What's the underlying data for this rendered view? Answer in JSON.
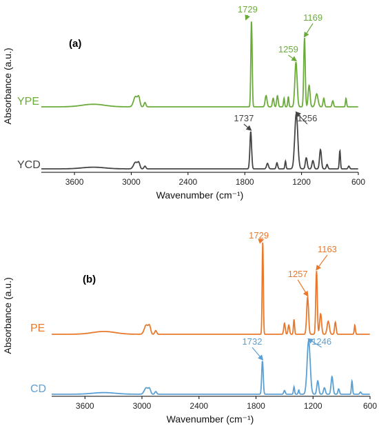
{
  "chart_data": [
    {
      "panel": "(a)",
      "type": "line",
      "xlabel": "Wavenumber (cm⁻¹)",
      "ylabel": "Absorbance (a.u.)",
      "xlim": [
        3950,
        600
      ],
      "x_reversed": true,
      "xticks": [
        3600,
        3000,
        2400,
        1800,
        1200,
        600
      ],
      "grid": false,
      "series": [
        {
          "name": "YPE",
          "color": "#6aab3a",
          "offset": 1.0,
          "peaks": [
            [
              3400,
              0.03,
              120
            ],
            [
              2955,
              0.12,
              20
            ],
            [
              2920,
              0.1,
              12
            ],
            [
              2855,
              0.05,
              10
            ],
            [
              1729,
              1.0,
              7
            ],
            [
              1575,
              0.13,
              10
            ],
            [
              1500,
              0.1,
              8
            ],
            [
              1455,
              0.13,
              8
            ],
            [
              1385,
              0.1,
              6
            ],
            [
              1340,
              0.12,
              6
            ],
            [
              1259,
              0.52,
              12
            ],
            [
              1169,
              0.8,
              8
            ],
            [
              1120,
              0.25,
              10
            ],
            [
              1040,
              0.15,
              14
            ],
            [
              965,
              0.1,
              8
            ],
            [
              870,
              0.07,
              8
            ],
            [
              730,
              0.1,
              6
            ]
          ]
        },
        {
          "name": "YCD",
          "color": "#444444",
          "offset": 0.0,
          "peaks": [
            [
              3400,
              0.03,
              120
            ],
            [
              2955,
              0.12,
              20
            ],
            [
              2920,
              0.1,
              12
            ],
            [
              2855,
              0.05,
              10
            ],
            [
              1737,
              0.68,
              9
            ],
            [
              1560,
              0.1,
              10
            ],
            [
              1460,
              0.11,
              8
            ],
            [
              1370,
              0.14,
              6
            ],
            [
              1256,
              1.0,
              16
            ],
            [
              1150,
              0.2,
              10
            ],
            [
              1080,
              0.15,
              10
            ],
            [
              1000,
              0.35,
              10
            ],
            [
              930,
              0.08,
              8
            ],
            [
              795,
              0.33,
              6
            ],
            [
              700,
              0.05,
              8
            ]
          ]
        }
      ],
      "annotations": [
        {
          "text": "1729",
          "series": "YPE",
          "x": 1729
        },
        {
          "text": "1259",
          "series": "YPE",
          "x": 1259
        },
        {
          "text": "1169",
          "series": "YPE",
          "x": 1169
        },
        {
          "text": "1737",
          "series": "YCD",
          "x": 1737
        },
        {
          "text": "1256",
          "series": "YCD",
          "x": 1256
        }
      ]
    },
    {
      "panel": "(b)",
      "type": "line",
      "xlabel": "Wavenumber (cm⁻¹)",
      "ylabel": "Absorbance (a.u.)",
      "xlim": [
        3950,
        600
      ],
      "x_reversed": true,
      "xticks": [
        3600,
        3000,
        2400,
        1800,
        1200,
        600
      ],
      "grid": false,
      "series": [
        {
          "name": "PE",
          "color": "#e8792c",
          "offset": 1.0,
          "peaks": [
            [
              3400,
              0.03,
              120
            ],
            [
              2955,
              0.1,
              20
            ],
            [
              2920,
              0.08,
              12
            ],
            [
              2855,
              0.04,
              10
            ],
            [
              1729,
              1.0,
              6
            ],
            [
              1500,
              0.12,
              8
            ],
            [
              1455,
              0.1,
              8
            ],
            [
              1400,
              0.16,
              6
            ],
            [
              1257,
              0.4,
              10
            ],
            [
              1163,
              0.68,
              8
            ],
            [
              1120,
              0.22,
              10
            ],
            [
              1040,
              0.14,
              12
            ],
            [
              965,
              0.13,
              8
            ],
            [
              760,
              0.1,
              6
            ]
          ]
        },
        {
          "name": "CD",
          "color": "#5b9fd3",
          "offset": 0.0,
          "peaks": [
            [
              3400,
              0.03,
              120
            ],
            [
              2955,
              0.12,
              20
            ],
            [
              2920,
              0.09,
              12
            ],
            [
              2855,
              0.05,
              10
            ],
            [
              1732,
              0.62,
              8
            ],
            [
              1500,
              0.07,
              8
            ],
            [
              1400,
              0.14,
              6
            ],
            [
              1350,
              0.08,
              6
            ],
            [
              1246,
              1.0,
              16
            ],
            [
              1150,
              0.25,
              10
            ],
            [
              1080,
              0.12,
              10
            ],
            [
              1000,
              0.33,
              10
            ],
            [
              930,
              0.1,
              8
            ],
            [
              790,
              0.25,
              6
            ],
            [
              700,
              0.04,
              8
            ]
          ]
        }
      ],
      "annotations": [
        {
          "text": "1729",
          "series": "PE",
          "x": 1729
        },
        {
          "text": "1257",
          "series": "PE",
          "x": 1257
        },
        {
          "text": "1163",
          "series": "PE",
          "x": 1163
        },
        {
          "text": "1732",
          "series": "CD",
          "x": 1732
        },
        {
          "text": "1246",
          "series": "CD",
          "x": 1246
        }
      ]
    }
  ]
}
